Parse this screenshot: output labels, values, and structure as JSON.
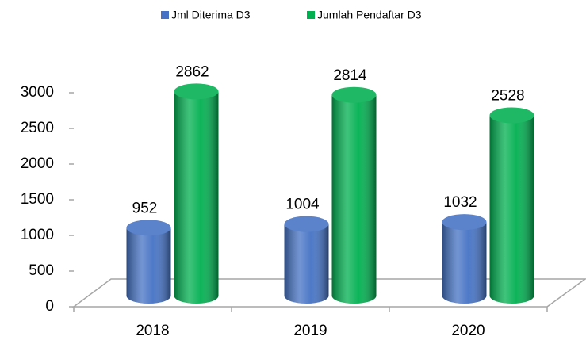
{
  "chart_data": {
    "type": "bar3d",
    "categories": [
      "2018",
      "2019",
      "2020"
    ],
    "series": [
      {
        "name": "Jml Diterima D3",
        "color": "#4472c4",
        "values": [
          952,
          1004,
          1032
        ]
      },
      {
        "name": "Jumlah Pendaftar D3",
        "color": "#00b050",
        "values": [
          2862,
          2814,
          2528
        ]
      }
    ],
    "ylim": [
      0,
      3000
    ],
    "yticks": [
      0,
      500,
      1000,
      1500,
      2000,
      2500,
      3000
    ],
    "legend": "top"
  }
}
